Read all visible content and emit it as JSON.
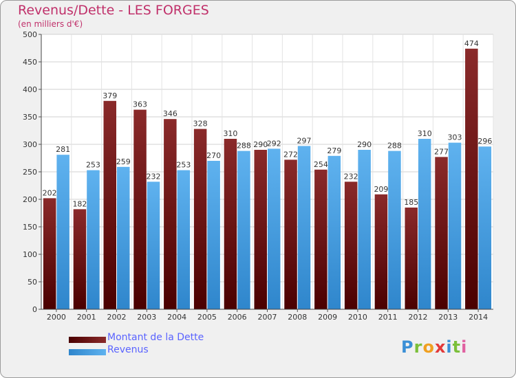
{
  "header": {
    "title": "Revenus/Dette - LES FORGES",
    "subtitle": "(en milliers d'€)"
  },
  "legend": [
    {
      "label": "Montant de la Dette",
      "color": "#6b0f0f"
    },
    {
      "label": "Revenus",
      "color": "#3d9ae0"
    }
  ],
  "logo": {
    "text": "Proxiti"
  },
  "chart_data": {
    "type": "bar",
    "title": "Revenus/Dette - LES FORGES",
    "ylabel": "(en milliers d'€)",
    "xlabel": "",
    "ylim": [
      0,
      500
    ],
    "yticks": [
      0,
      50,
      100,
      150,
      200,
      250,
      300,
      350,
      400,
      450,
      500
    ],
    "grid": true,
    "legend_position": "bottom-left",
    "categories": [
      "2000",
      "2001",
      "2002",
      "2003",
      "2004",
      "2005",
      "2006",
      "2007",
      "2008",
      "2009",
      "2010",
      "2011",
      "2012",
      "2013",
      "2014"
    ],
    "series": [
      {
        "name": "Montant de la Dette",
        "color": "#7a1c1c",
        "values": [
          202,
          182,
          379,
          363,
          346,
          328,
          310,
          290,
          272,
          254,
          232,
          209,
          185,
          277,
          474
        ]
      },
      {
        "name": "Revenus",
        "color": "#4aa3e6",
        "values": [
          281,
          253,
          259,
          232,
          253,
          270,
          288,
          292,
          297,
          279,
          290,
          288,
          310,
          303,
          296
        ]
      }
    ]
  }
}
